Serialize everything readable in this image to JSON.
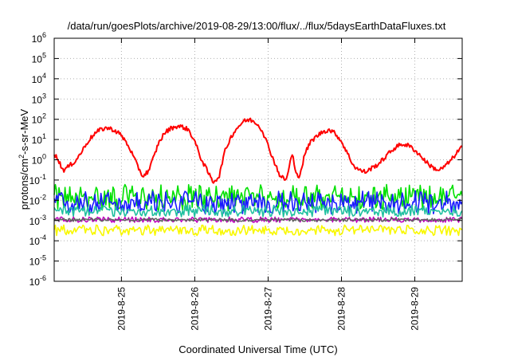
{
  "chart_data": {
    "type": "line",
    "title": "/data/run/goesPlots/archive/2019-08-29/13:00/flux/../flux/5daysEarthDataFluxes.txt",
    "xlabel": "Coordinated Universal Time (UTC)",
    "ylabel": {
      "prefix": "protons/cm",
      "sup": "2",
      "suffix": "-s-sr-MeV"
    },
    "y_scale": "log",
    "ylim": [
      1e-06,
      1000000.0
    ],
    "y_ticks": [
      {
        "base": "10",
        "exp": "-6",
        "value": 1e-06
      },
      {
        "base": "10",
        "exp": "-5",
        "value": 1e-05
      },
      {
        "base": "10",
        "exp": "-4",
        "value": 0.0001
      },
      {
        "base": "10",
        "exp": "-3",
        "value": 0.001
      },
      {
        "base": "10",
        "exp": "-2",
        "value": 0.01
      },
      {
        "base": "10",
        "exp": "-1",
        "value": 0.1
      },
      {
        "base": "10",
        "exp": "0",
        "value": 1
      },
      {
        "base": "10",
        "exp": "1",
        "value": 10
      },
      {
        "base": "10",
        "exp": "2",
        "value": 100
      },
      {
        "base": "10",
        "exp": "3",
        "value": 1000
      },
      {
        "base": "10",
        "exp": "4",
        "value": 10000
      },
      {
        "base": "10",
        "exp": "5",
        "value": 100000
      },
      {
        "base": "10",
        "exp": "6",
        "value": 1000000
      }
    ],
    "x_unit": "days",
    "xlim_days": [
      "2019-08-24 02:00",
      "2019-08-29 15:30"
    ],
    "x_ticks": [
      "2019-8-25",
      "2019-8-26",
      "2019-8-27",
      "2019-8-28",
      "2019-8-29"
    ],
    "grid": true,
    "legend": "none",
    "series": [
      {
        "color": "#ff0000",
        "x": [
          "2019-08-24 02:00",
          "2019-08-24 03:00",
          "2019-08-24 04:00",
          "2019-08-24 05:00",
          "2019-08-24 07:00",
          "2019-08-24 09:00",
          "2019-08-24 11:00",
          "2019-08-24 13:00",
          "2019-08-24 15:00",
          "2019-08-24 17:00",
          "2019-08-24 19:00",
          "2019-08-24 21:00",
          "2019-08-24 23:00",
          "2019-08-25 01:00",
          "2019-08-25 03:00",
          "2019-08-25 05:00",
          "2019-08-25 07:00",
          "2019-08-25 09:00",
          "2019-08-25 10:00",
          "2019-08-25 11:00",
          "2019-08-25 12:00",
          "2019-08-25 14:00",
          "2019-08-25 16:00",
          "2019-08-25 18:00",
          "2019-08-25 20:00",
          "2019-08-25 22:00",
          "2019-08-26 00:00",
          "2019-08-26 02:00",
          "2019-08-26 04:00",
          "2019-08-26 06:00",
          "2019-08-26 08:00",
          "2019-08-26 09:00",
          "2019-08-26 10:00",
          "2019-08-26 12:00",
          "2019-08-26 14:00",
          "2019-08-26 16:00",
          "2019-08-26 18:00",
          "2019-08-26 20:00",
          "2019-08-26 22:00",
          "2019-08-27 00:00",
          "2019-08-27 02:00",
          "2019-08-27 04:00",
          "2019-08-27 06:00",
          "2019-08-27 07:00",
          "2019-08-27 08:00",
          "2019-08-27 09:00",
          "2019-08-27 10:00",
          "2019-08-27 11:00",
          "2019-08-27 12:00",
          "2019-08-27 14:00",
          "2019-08-27 16:00",
          "2019-08-27 18:00",
          "2019-08-27 20:00",
          "2019-08-27 22:00",
          "2019-08-28 00:00",
          "2019-08-28 02:00",
          "2019-08-28 04:00",
          "2019-08-28 06:00",
          "2019-08-28 08:00",
          "2019-08-28 10:00",
          "2019-08-28 12:00",
          "2019-08-28 14:00",
          "2019-08-28 16:00",
          "2019-08-28 18:00",
          "2019-08-28 20:00",
          "2019-08-28 22:00",
          "2019-08-29 00:00",
          "2019-08-29 02:00",
          "2019-08-29 04:00",
          "2019-08-29 06:00",
          "2019-08-29 08:00",
          "2019-08-29 10:00",
          "2019-08-29 12:00",
          "2019-08-29 14:00",
          "2019-08-29 15:30"
        ],
        "values": [
          2.0,
          1.2,
          0.6,
          0.3,
          0.5,
          0.9,
          2.5,
          8,
          18,
          30,
          38,
          32,
          22,
          10,
          3,
          0.6,
          0.15,
          0.3,
          0.8,
          2,
          6,
          20,
          35,
          45,
          42,
          30,
          8,
          1.2,
          0.3,
          0.08,
          0.15,
          0.8,
          3,
          15,
          40,
          80,
          95,
          70,
          30,
          5,
          0.8,
          0.15,
          0.1,
          0.6,
          2,
          0.2,
          0.15,
          0.4,
          2,
          8,
          15,
          25,
          30,
          20,
          8,
          2,
          0.5,
          0.3,
          0.25,
          0.4,
          0.6,
          1.2,
          2.5,
          4.5,
          6,
          5,
          3,
          1.5,
          0.7,
          0.4,
          0.3,
          0.5,
          1,
          2.5,
          4.5
        ]
      },
      {
        "color": "#00e000",
        "band": [
          0.003,
          0.06
        ],
        "typical": 0.015
      },
      {
        "color": "#1a1aff",
        "band": [
          0.002,
          0.03
        ],
        "typical": 0.008
      },
      {
        "color": "#20c0a0",
        "band": [
          0.0015,
          0.006
        ],
        "typical": 0.003
      },
      {
        "color": "#c000c0",
        "band": [
          0.0008,
          0.0015
        ],
        "typical": 0.0011
      },
      {
        "color": "#606060",
        "band": [
          0.0009,
          0.0013
        ],
        "typical": 0.0011
      },
      {
        "color": "#f8f800",
        "band": [
          0.00018,
          0.0006
        ],
        "typical": 0.00035
      }
    ]
  }
}
